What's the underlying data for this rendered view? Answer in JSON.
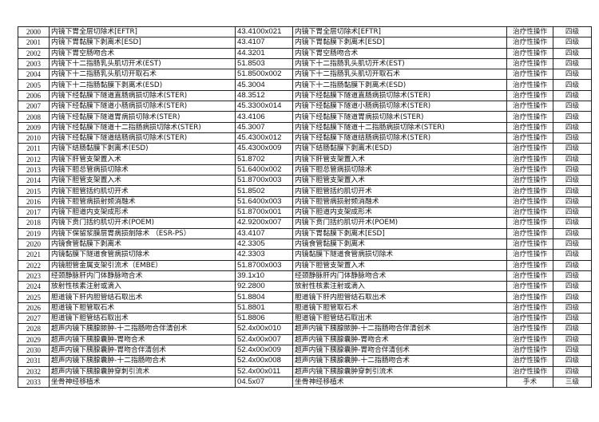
{
  "rows": [
    {
      "no": "2000",
      "name": "内镜下胃全层切除术[EFTR]",
      "code": "43.4100x021",
      "name2": "内镜下胃全层切除术[EFTR]",
      "type": "治疗性操作",
      "level": "四级"
    },
    {
      "no": "2001",
      "name": "内镜下胃黏膜下剥离术[ESD]",
      "code": "43.4107",
      "name2": "内镜下胃黏膜下剥离术[ESD]",
      "type": "治疗性操作",
      "level": "四级"
    },
    {
      "no": "2002",
      "name": "内镜下胃空肠吻合术",
      "code": "44.3201",
      "name2": "内镜下胃空肠吻合术",
      "type": "治疗性操作",
      "level": "四级"
    },
    {
      "no": "2003",
      "name": "内镜下十二指肠乳头肌切开术(EST)",
      "code": "51.8503",
      "name2": "内镜下十二指肠乳头肌切开术(EST)",
      "type": "治疗性操作",
      "level": "四级"
    },
    {
      "no": "2004",
      "name": "内镜下十二指肠乳头肌切开取石术",
      "code": "51.8500x002",
      "name2": "内镜下十二指肠乳头肌切开取石术",
      "type": "治疗性操作",
      "level": "四级"
    },
    {
      "no": "2005",
      "name": "内镜下十二指肠黏膜下剥离术(ESD)",
      "code": "45.3004",
      "name2": "内镜下十二指肠黏膜下剥离术(ESD)",
      "type": "治疗性操作",
      "level": "四级"
    },
    {
      "no": "2006",
      "name": "内镜下经黏膜下隧道直肠病损切除术(STER)",
      "code": "48.3512",
      "name2": "内镜下经黏膜下隧道直肠病损切除术(STER)",
      "type": "治疗性操作",
      "level": "四级"
    },
    {
      "no": "2007",
      "name": "内镜下经黏膜下隧道小肠病损切除术(STER)",
      "code": "45.3300x014",
      "name2": "内镜下经黏膜下隧道小肠病损切除术(STER)",
      "type": "治疗性操作",
      "level": "四级"
    },
    {
      "no": "2008",
      "name": "内镜下经黏膜下隧道胃病损切除术(STER)",
      "code": "43.4106",
      "name2": "内镜下经黏膜下隧道胃病损切除术(STER)",
      "type": "治疗性操作",
      "level": "四级"
    },
    {
      "no": "2009",
      "name": "内镜下经黏膜下隧道十二指肠病损切除术(STER)",
      "code": "45.3007",
      "name2": "内镜下经黏膜下隧道十二指肠病损切除术(STER)",
      "type": "治疗性操作",
      "level": "四级"
    },
    {
      "no": "2010",
      "name": "内镜下经黏膜下隧道结肠病损切除术(STER)",
      "code": "45.4300x012",
      "name2": "内镜下经黏膜下隧道结肠病损切除术(STER)",
      "type": "治疗性操作",
      "level": "四级"
    },
    {
      "no": "2011",
      "name": "内镜下结肠黏膜下剥离术(ESD)",
      "code": "45.4300x009",
      "name2": "内镜下结肠黏膜下剥离术(ESD)",
      "type": "治疗性操作",
      "level": "四级"
    },
    {
      "no": "2012",
      "name": "内镜下肝管支架置入术",
      "code": "51.8702",
      "name2": "内镜下肝管支架置入术",
      "type": "治疗性操作",
      "level": "四级"
    },
    {
      "no": "2013",
      "name": "内镜下胆总管病损切除术",
      "code": "51.6400x002",
      "name2": "内镜下胆总管病损切除术",
      "type": "治疗性操作",
      "level": "四级"
    },
    {
      "no": "2014",
      "name": "内镜下胆管支架置入术",
      "code": "51.8700x003",
      "name2": "内镜下胆管支架置入术",
      "type": "治疗性操作",
      "level": "四级"
    },
    {
      "no": "2015",
      "name": "内镜下胆管括约肌切开术",
      "code": "51.8502",
      "name2": "内镜下胆管括约肌切开术",
      "type": "治疗性操作",
      "level": "四级"
    },
    {
      "no": "2016",
      "name": "内镜下胆管病损射频消融术",
      "code": "51.6400x003",
      "name2": "内镜下胆管病损射频消融术",
      "type": "治疗性操作",
      "level": "四级"
    },
    {
      "no": "2017",
      "name": "内镜下胆道内支架成形术",
      "code": "51.8700x001",
      "name2": "内镜下胆道内支架成形术",
      "type": "治疗性操作",
      "level": "四级"
    },
    {
      "no": "2018",
      "name": "内镜下贲门括约肌切开术(POEM)",
      "code": "42.9200x007",
      "name2": "内镜下贲门括约肌切开术(POEM)",
      "type": "治疗性操作",
      "level": "四级"
    },
    {
      "no": "2019",
      "name": "内镜下保留浆膜层胃病损剜除术 （ESR-PS）",
      "code": "43.4107",
      "name2": "内镜下胃黏膜下剥离术[ESD]",
      "type": "治疗性操作",
      "level": "四级"
    },
    {
      "no": "2020",
      "name": "内镜食管黏膜下剥离术",
      "code": "42.3305",
      "name2": "内镜食管黏膜下剥离术",
      "type": "治疗性操作",
      "level": "四级"
    },
    {
      "no": "2021",
      "name": "内镜黏膜下隧道食管病损切除术",
      "code": "42.3303",
      "name2": "内镜黏膜下隧道食管病损切除术",
      "type": "治疗性操作",
      "level": "四级"
    },
    {
      "no": "2022",
      "name": "内镜胆管金属支架引流术（EMBE）",
      "code": "51.8700x003",
      "name2": "内镜下胆管支架置入术",
      "type": "治疗性操作",
      "level": "四级"
    },
    {
      "no": "2023",
      "name": "经颈静脉肝内门体静脉吻合术",
      "code": "39.1x10",
      "name2": "经颈静脉肝内门体静脉吻合术",
      "type": "治疗性操作",
      "level": "四级"
    },
    {
      "no": "2024",
      "name": "放射性核素注射或滴入",
      "code": "92.2800",
      "name2": "放射性核素注射或滴入",
      "type": "治疗性操作",
      "level": "四级"
    },
    {
      "no": "2025",
      "name": "胆道镜下肝内胆管结石取出术",
      "code": "51.8804",
      "name2": "胆道镜下肝内胆管结石取出术",
      "type": "治疗性操作",
      "level": "四级"
    },
    {
      "no": "2026",
      "name": "胆道镜下胆管取石术",
      "code": "51.8801",
      "name2": "胆道镜下胆管取石术",
      "type": "治疗性操作",
      "level": "四级"
    },
    {
      "no": "2027",
      "name": "胆道镜下胆管结石取出术",
      "code": "51.8806",
      "name2": "胆道镜下胆管结石取出术",
      "type": "治疗性操作",
      "level": "四级"
    },
    {
      "no": "2028",
      "name": "超声内镜下胰腺脓肿-十二指肠吻合伴清创术",
      "code": "52.4x00x010",
      "name2": "超声内镜下胰腺脓肿-十二指肠吻合伴清创术",
      "type": "治疗性操作",
      "level": "四级"
    },
    {
      "no": "2029",
      "name": "超声内镜下胰腺囊肿-胃吻合术",
      "code": "52.4x00x007",
      "name2": "超声内镜下胰腺囊肿-胃吻合术",
      "type": "治疗性操作",
      "level": "四级"
    },
    {
      "no": "2030",
      "name": "超声内镜下胰腺囊肿-胃吻合伴清创术",
      "code": "52.4x00x009",
      "name2": "超声内镜下胰腺囊肿-胃吻合伴清创术",
      "type": "治疗性操作",
      "level": "四级"
    },
    {
      "no": "2031",
      "name": "超声内镜下胰腺囊肿-十二指肠吻合术",
      "code": "52.4x00x008",
      "name2": "超声内镜下胰腺囊肿-十二指肠吻合术",
      "type": "治疗性操作",
      "level": "四级"
    },
    {
      "no": "2032",
      "name": "超声内镜下胰腺囊肿穿刺引流术",
      "code": "52.4x00x011",
      "name2": "超声内镜下胰腺囊肿穿刺引流术",
      "type": "治疗性操作",
      "level": "四级"
    },
    {
      "no": "2033",
      "name": "坐骨神经移植术",
      "code": "04.5x07",
      "name2": "坐骨神经移植术",
      "type": "手术",
      "level": "三级"
    }
  ]
}
